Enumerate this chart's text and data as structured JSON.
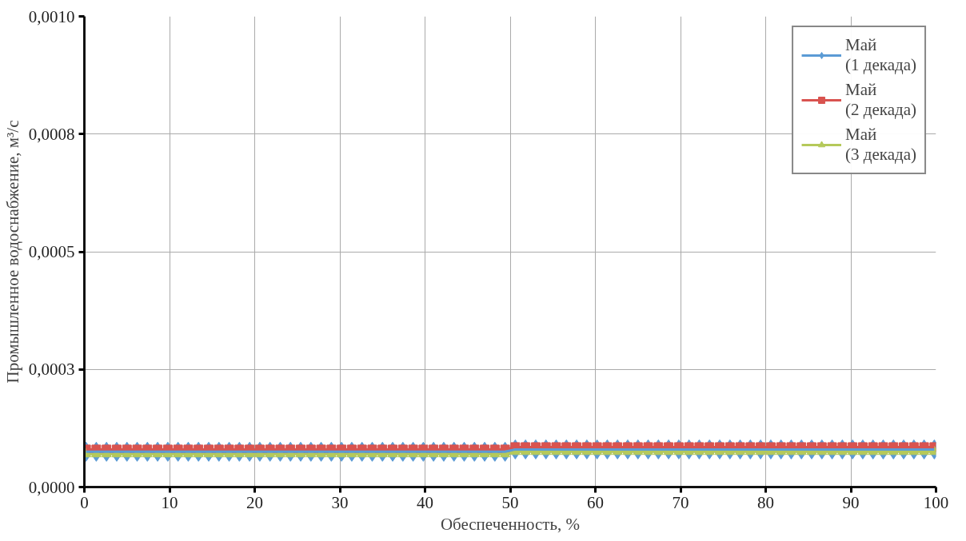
{
  "chart_data": {
    "type": "line",
    "xlabel": "Обеспеченность, %",
    "ylabel": "Промышленное водоснабжение, м³/с",
    "x": [
      0.2,
      1.4,
      2.6,
      3.8,
      5,
      6.2,
      7.4,
      8.6,
      9.8,
      11,
      12.2,
      13.4,
      14.6,
      15.8,
      17,
      18.2,
      19.4,
      20.6,
      21.8,
      23,
      24.2,
      25.4,
      26.6,
      27.8,
      29,
      30.2,
      31.4,
      32.6,
      33.8,
      35,
      36.2,
      37.4,
      38.6,
      39.8,
      41,
      42.2,
      43.4,
      44.6,
      45.8,
      47,
      48.2,
      49.4,
      50.6,
      51.8,
      53,
      54.2,
      55.4,
      56.6,
      57.8,
      59,
      60.2,
      61.4,
      62.6,
      63.8,
      65,
      66.2,
      67.4,
      68.6,
      69.8,
      71,
      72.2,
      73.4,
      74.6,
      75.8,
      77,
      78.2,
      79.4,
      80.6,
      81.8,
      83,
      84.2,
      85.4,
      86.6,
      87.8,
      89,
      90.2,
      91.4,
      92.6,
      93.8,
      95,
      96.2,
      97.4,
      98.6,
      99.8
    ],
    "series": [
      {
        "name": "Май (1 декада)",
        "color": "#5b9bd5",
        "marker": "diamond",
        "values": [
          7.5e-05,
          7.5e-05,
          7.5e-05,
          7.5e-05,
          7.5e-05,
          7.5e-05,
          7.5e-05,
          7.5e-05,
          7.5e-05,
          7.5e-05,
          7.5e-05,
          7.5e-05,
          7.5e-05,
          7.5e-05,
          7.5e-05,
          7.5e-05,
          7.5e-05,
          7.5e-05,
          7.5e-05,
          7.5e-05,
          7.5e-05,
          7.5e-05,
          7.5e-05,
          7.5e-05,
          7.5e-05,
          7.5e-05,
          7.5e-05,
          7.5e-05,
          7.5e-05,
          7.5e-05,
          7.5e-05,
          7.5e-05,
          7.5e-05,
          7.5e-05,
          7.5e-05,
          7.5e-05,
          7.5e-05,
          7.5e-05,
          7.5e-05,
          7.5e-05,
          7.5e-05,
          7.5e-05,
          8e-05,
          8e-05,
          8e-05,
          8e-05,
          8e-05,
          8e-05,
          8e-05,
          8e-05,
          8e-05,
          8e-05,
          8e-05,
          8e-05,
          8e-05,
          8e-05,
          8e-05,
          8e-05,
          8e-05,
          8e-05,
          8e-05,
          8e-05,
          8e-05,
          8e-05,
          8e-05,
          8e-05,
          8e-05,
          8e-05,
          8e-05,
          8e-05,
          8e-05,
          8e-05,
          8e-05,
          8e-05,
          8e-05,
          8e-05,
          8e-05,
          8e-05,
          8e-05,
          8e-05,
          8e-05,
          8e-05,
          8e-05,
          8e-05
        ]
      },
      {
        "name": "Май (2 декада)",
        "color": "#d9534f",
        "marker": "square",
        "values": [
          8e-05,
          8e-05,
          8e-05,
          8e-05,
          8e-05,
          8e-05,
          8e-05,
          8e-05,
          8e-05,
          8e-05,
          8e-05,
          8e-05,
          8e-05,
          8e-05,
          8e-05,
          8e-05,
          8e-05,
          8e-05,
          8e-05,
          8e-05,
          8e-05,
          8e-05,
          8e-05,
          8e-05,
          8e-05,
          8e-05,
          8e-05,
          8e-05,
          8e-05,
          8e-05,
          8e-05,
          8e-05,
          8e-05,
          8e-05,
          8e-05,
          8e-05,
          8e-05,
          8e-05,
          8e-05,
          8e-05,
          8e-05,
          8e-05,
          8.5e-05,
          8.5e-05,
          8.5e-05,
          8.5e-05,
          8.5e-05,
          8.5e-05,
          8.5e-05,
          8.5e-05,
          8.5e-05,
          8.5e-05,
          8.5e-05,
          8.5e-05,
          8.5e-05,
          8.5e-05,
          8.5e-05,
          8.5e-05,
          8.5e-05,
          8.5e-05,
          8.5e-05,
          8.5e-05,
          8.5e-05,
          8.5e-05,
          8.5e-05,
          8.5e-05,
          8.5e-05,
          8.5e-05,
          8.5e-05,
          8.5e-05,
          8.5e-05,
          8.5e-05,
          8.5e-05,
          8.5e-05,
          8.5e-05,
          8.5e-05,
          8.5e-05,
          8.5e-05,
          8.5e-05,
          8.5e-05,
          8.5e-05,
          8.5e-05,
          8.5e-05,
          8.5e-05
        ]
      },
      {
        "name": "Май (3 декада)",
        "color": "#b5c95a",
        "marker": "triangle",
        "values": [
          7e-05,
          7e-05,
          7e-05,
          7e-05,
          7e-05,
          7e-05,
          7e-05,
          7e-05,
          7e-05,
          7e-05,
          7e-05,
          7e-05,
          7e-05,
          7e-05,
          7e-05,
          7e-05,
          7e-05,
          7e-05,
          7e-05,
          7e-05,
          7e-05,
          7e-05,
          7e-05,
          7e-05,
          7e-05,
          7e-05,
          7e-05,
          7e-05,
          7e-05,
          7e-05,
          7e-05,
          7e-05,
          7e-05,
          7e-05,
          7e-05,
          7e-05,
          7e-05,
          7e-05,
          7e-05,
          7e-05,
          7e-05,
          7e-05,
          7.5e-05,
          7.5e-05,
          7.5e-05,
          7.5e-05,
          7.5e-05,
          7.5e-05,
          7.5e-05,
          7.5e-05,
          7.5e-05,
          7.5e-05,
          7.5e-05,
          7.5e-05,
          7.5e-05,
          7.5e-05,
          7.5e-05,
          7.5e-05,
          7.5e-05,
          7.5e-05,
          7.5e-05,
          7.5e-05,
          7.5e-05,
          7.5e-05,
          7.5e-05,
          7.5e-05,
          7.5e-05,
          7.5e-05,
          7.5e-05,
          7.5e-05,
          7.5e-05,
          7.5e-05,
          7.5e-05,
          7.5e-05,
          7.5e-05,
          7.5e-05,
          7.5e-05,
          7.5e-05,
          7.5e-05,
          7.5e-05,
          7.5e-05,
          7.5e-05,
          7.5e-05,
          7.5e-05
        ]
      }
    ],
    "xlim": [
      0,
      100
    ],
    "xticks": [
      0,
      10,
      20,
      30,
      40,
      50,
      60,
      70,
      80,
      90,
      100
    ],
    "ylim": [
      0,
      0.001
    ],
    "yticks": [
      {
        "value": 0,
        "label": "0,0000"
      },
      {
        "value": 0.00025,
        "label": "0,0003"
      },
      {
        "value": 0.0005,
        "label": "0,0005"
      },
      {
        "value": 0.00075,
        "label": "0,0008"
      },
      {
        "value": 0.001,
        "label": "0,0010"
      }
    ],
    "grid": true,
    "legend": "top right",
    "line_style": "solid"
  }
}
